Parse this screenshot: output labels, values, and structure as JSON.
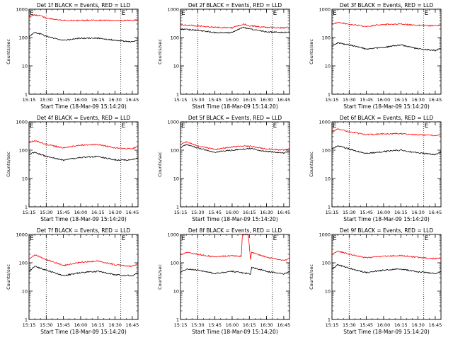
{
  "chart_data": [
    {
      "type": "line",
      "title": "Det 1f BLACK = Events, RED = LLD",
      "xlabel": "Start Time (18-Mar-09 15:14:20)",
      "ylabel": "Counts/sec",
      "xlim": [
        "15:15",
        "16:50"
      ],
      "ylim": [
        1,
        1000
      ],
      "yscale": "log",
      "xticks": [
        "15:15",
        "15:30",
        "15:45",
        "16:00",
        "16:15",
        "16:30",
        "16:45"
      ],
      "yticks": [
        "1",
        "10",
        "100",
        "1000"
      ],
      "annotations": [
        "E",
        "E"
      ],
      "dotted_lines_x": [
        "15:30",
        "16:35"
      ],
      "series": [
        {
          "color": "#ff0000",
          "x": [
            "15:15",
            "15:20",
            "15:25",
            "15:30",
            "15:45",
            "16:00",
            "16:15",
            "16:30",
            "16:45",
            "16:50"
          ],
          "y": [
            550,
            620,
            600,
            480,
            400,
            400,
            410,
            400,
            400,
            420
          ]
        },
        {
          "color": "#000000",
          "x": [
            "15:15",
            "15:20",
            "15:25",
            "15:30",
            "15:45",
            "16:00",
            "16:15",
            "16:30",
            "16:45",
            "16:50"
          ],
          "y": [
            110,
            150,
            135,
            110,
            80,
            95,
            95,
            80,
            70,
            85
          ]
        }
      ]
    },
    {
      "type": "line",
      "title": "Det 2f BLACK = Events, RED = LLD",
      "xlabel": "Start Time (18-Mar-09 15:14:20)",
      "ylabel": "Counts/sec",
      "xlim": [
        "15:15",
        "16:50"
      ],
      "ylim": [
        1,
        1000
      ],
      "yscale": "log",
      "xticks": [
        "15:15",
        "15:30",
        "15:45",
        "16:00",
        "16:15",
        "16:30",
        "16:45"
      ],
      "yticks": [
        "1",
        "10",
        "100",
        "1000"
      ],
      "annotations": [
        "E",
        "E"
      ],
      "dotted_lines_x": [
        "15:30",
        "16:35"
      ],
      "series": [
        {
          "color": "#ff0000",
          "x": [
            "15:15",
            "15:30",
            "15:45",
            "16:00",
            "16:10",
            "16:15",
            "16:30",
            "16:45",
            "16:50"
          ],
          "y": [
            280,
            260,
            230,
            220,
            300,
            260,
            230,
            220,
            230
          ]
        },
        {
          "color": "#000000",
          "x": [
            "15:15",
            "15:30",
            "15:45",
            "16:00",
            "16:10",
            "16:15",
            "16:30",
            "16:45",
            "16:50"
          ],
          "y": [
            200,
            180,
            150,
            150,
            230,
            200,
            160,
            150,
            155
          ]
        }
      ]
    },
    {
      "type": "line",
      "title": "Det 3f BLACK = Events, RED = LLD",
      "xlabel": "Start Time (18-Mar-09 15:14:20)",
      "ylabel": "Counts/sec",
      "xlim": [
        "15:15",
        "16:50"
      ],
      "ylim": [
        1,
        1000
      ],
      "yscale": "log",
      "xticks": [
        "15:15",
        "15:30",
        "15:45",
        "16:00",
        "16:15",
        "16:30",
        "16:45"
      ],
      "yticks": [
        "1",
        "10",
        "100",
        "1000"
      ],
      "annotations": [
        "E",
        "E"
      ],
      "dotted_lines_x": [
        "15:30",
        "16:35"
      ],
      "series": [
        {
          "color": "#ff0000",
          "x": [
            "15:15",
            "15:20",
            "15:30",
            "15:45",
            "16:00",
            "16:15",
            "16:30",
            "16:45",
            "16:50"
          ],
          "y": [
            300,
            340,
            290,
            250,
            290,
            300,
            270,
            260,
            270
          ]
        },
        {
          "color": "#000000",
          "x": [
            "15:15",
            "15:20",
            "15:30",
            "15:45",
            "16:00",
            "16:15",
            "16:30",
            "16:45",
            "16:50"
          ],
          "y": [
            50,
            65,
            55,
            40,
            45,
            55,
            40,
            35,
            42
          ]
        }
      ]
    },
    {
      "type": "line",
      "title": "Det 4f BLACK = Events, RED = LLD",
      "xlabel": "Start Time (18-Mar-09 15:14:20)",
      "ylabel": "Counts/sec",
      "xlim": [
        "15:15",
        "16:50"
      ],
      "ylim": [
        1,
        1000
      ],
      "yscale": "log",
      "xticks": [
        "15:15",
        "15:30",
        "15:45",
        "16:00",
        "16:15",
        "16:30",
        "16:45"
      ],
      "yticks": [
        "1",
        "10",
        "100",
        "1000"
      ],
      "annotations": [
        "E",
        "E"
      ],
      "dotted_lines_x": [
        "15:30",
        "16:35"
      ],
      "series": [
        {
          "color": "#ff0000",
          "x": [
            "15:15",
            "15:20",
            "15:30",
            "15:45",
            "16:00",
            "16:15",
            "16:30",
            "16:45",
            "16:50"
          ],
          "y": [
            180,
            220,
            160,
            120,
            150,
            160,
            120,
            110,
            140
          ]
        },
        {
          "color": "#000000",
          "x": [
            "15:15",
            "15:20",
            "15:30",
            "15:45",
            "16:00",
            "16:15",
            "16:30",
            "16:45",
            "16:50"
          ],
          "y": [
            70,
            85,
            60,
            45,
            55,
            60,
            45,
            45,
            55
          ]
        }
      ]
    },
    {
      "type": "line",
      "title": "Det 5f BLACK = Events, RED = LLD",
      "xlabel": "Start Time (18-Mar-09 15:14:20)",
      "ylabel": "Counts/sec",
      "xlim": [
        "15:15",
        "16:50"
      ],
      "ylim": [
        1,
        1000
      ],
      "yscale": "log",
      "xticks": [
        "15:15",
        "15:30",
        "15:45",
        "16:00",
        "16:15",
        "16:30",
        "16:45"
      ],
      "yticks": [
        "1",
        "10",
        "100",
        "1000"
      ],
      "annotations": [
        "E",
        "E"
      ],
      "dotted_lines_x": [
        "15:30",
        "16:35"
      ],
      "series": [
        {
          "color": "#ff0000",
          "x": [
            "15:15",
            "15:20",
            "15:30",
            "15:45",
            "16:00",
            "16:15",
            "16:30",
            "16:45",
            "16:50"
          ],
          "y": [
            150,
            200,
            140,
            105,
            130,
            140,
            110,
            100,
            110
          ]
        },
        {
          "color": "#000000",
          "x": [
            "15:15",
            "15:20",
            "15:30",
            "15:45",
            "16:00",
            "16:15",
            "16:30",
            "16:45",
            "16:50"
          ],
          "y": [
            120,
            160,
            120,
            85,
            100,
            115,
            90,
            80,
            95
          ]
        }
      ]
    },
    {
      "type": "line",
      "title": "Det 6f BLACK = Events, RED = LLD",
      "xlabel": "Start Time (18-Mar-09 15:14:20)",
      "ylabel": "Counts/sec",
      "xlim": [
        "15:15",
        "16:50"
      ],
      "ylim": [
        1,
        1000
      ],
      "yscale": "log",
      "xticks": [
        "15:15",
        "15:30",
        "15:45",
        "16:00",
        "16:15",
        "16:30",
        "16:45"
      ],
      "yticks": [
        "1",
        "10",
        "100",
        "1000"
      ],
      "annotations": [
        "E",
        "E"
      ],
      "dotted_lines_x": [
        "15:30",
        "16:35"
      ],
      "series": [
        {
          "color": "#ff0000",
          "x": [
            "15:15",
            "15:20",
            "15:30",
            "15:45",
            "16:00",
            "16:15",
            "16:30",
            "16:45",
            "16:50"
          ],
          "y": [
            450,
            550,
            450,
            350,
            380,
            380,
            350,
            330,
            350
          ]
        },
        {
          "color": "#000000",
          "x": [
            "15:15",
            "15:20",
            "15:30",
            "15:45",
            "16:00",
            "16:15",
            "16:30",
            "16:45",
            "16:50"
          ],
          "y": [
            110,
            145,
            110,
            75,
            90,
            100,
            80,
            70,
            85
          ]
        }
      ]
    },
    {
      "type": "line",
      "title": "Det 7f BLACK = Events, RED = LLD",
      "xlabel": "Start Time (18-Mar-09 15:14:20)",
      "ylabel": "Counts/sec",
      "xlim": [
        "15:15",
        "16:50"
      ],
      "ylim": [
        1,
        1000
      ],
      "yscale": "log",
      "xticks": [
        "15:15",
        "15:30",
        "15:45",
        "16:00",
        "16:15",
        "16:30",
        "16:45"
      ],
      "yticks": [
        "1",
        "10",
        "100",
        "1000"
      ],
      "annotations": [
        "E",
        "E"
      ],
      "dotted_lines_x": [
        "15:30",
        "16:35"
      ],
      "series": [
        {
          "color": "#ff0000",
          "x": [
            "15:15",
            "15:20",
            "15:30",
            "15:45",
            "16:00",
            "16:15",
            "16:30",
            "16:45",
            "16:50"
          ],
          "y": [
            130,
            190,
            130,
            80,
            105,
            115,
            85,
            75,
            95
          ]
        },
        {
          "color": "#000000",
          "x": [
            "15:15",
            "15:20",
            "15:30",
            "15:45",
            "16:00",
            "16:15",
            "16:30",
            "16:45",
            "16:50"
          ],
          "y": [
            50,
            75,
            55,
            35,
            45,
            50,
            38,
            35,
            45
          ]
        }
      ]
    },
    {
      "type": "line",
      "title": "Det 8f BLACK = Events, RED = LLD",
      "xlabel": "Start Time (18-Mar-09 15:14:20)",
      "ylabel": "Counts/sec",
      "xlim": [
        "15:15",
        "16:50"
      ],
      "ylim": [
        1,
        1000
      ],
      "yscale": "log",
      "xticks": [
        "15:15",
        "15:30",
        "15:45",
        "16:00",
        "16:15",
        "16:30",
        "16:45"
      ],
      "yticks": [
        "1",
        "10",
        "100",
        "1000"
      ],
      "annotations": [
        "E",
        "E"
      ],
      "dotted_lines_x": [
        "15:30",
        "16:35"
      ],
      "series": [
        {
          "color": "#ff0000",
          "x": [
            "15:15",
            "15:20",
            "15:30",
            "15:45",
            "16:00",
            "16:08",
            "16:09",
            "16:11",
            "16:13",
            "16:14",
            "16:16",
            "16:17",
            "16:30",
            "16:45",
            "16:50"
          ],
          "y": [
            190,
            230,
            200,
            160,
            180,
            170,
            1000,
            1000,
            1000,
            1000,
            130,
            230,
            160,
            120,
            140
          ]
        },
        {
          "color": "#000000",
          "x": [
            "15:15",
            "15:20",
            "15:30",
            "15:45",
            "16:00",
            "16:08",
            "16:16",
            "16:17",
            "16:30",
            "16:45",
            "16:50"
          ],
          "y": [
            45,
            60,
            55,
            42,
            50,
            45,
            40,
            70,
            50,
            40,
            48
          ]
        }
      ]
    },
    {
      "type": "line",
      "title": "Det 9f BLACK = Events, RED = LLD",
      "xlabel": "Start Time (18-Mar-09 15:14:20)",
      "ylabel": "Counts/sec",
      "xlim": [
        "15:15",
        "16:50"
      ],
      "ylim": [
        1,
        1000
      ],
      "yscale": "log",
      "xticks": [
        "15:15",
        "15:30",
        "15:45",
        "16:00",
        "16:15",
        "16:30",
        "16:45"
      ],
      "yticks": [
        "1",
        "10",
        "100",
        "1000"
      ],
      "annotations": [
        "E",
        "E"
      ],
      "dotted_lines_x": [
        "15:30",
        "16:35"
      ],
      "series": [
        {
          "color": "#ff0000",
          "x": [
            "15:15",
            "15:20",
            "15:30",
            "15:45",
            "16:00",
            "16:15",
            "16:30",
            "16:45",
            "16:50"
          ],
          "y": [
            200,
            260,
            200,
            150,
            170,
            180,
            155,
            140,
            150
          ]
        },
        {
          "color": "#000000",
          "x": [
            "15:15",
            "15:20",
            "15:30",
            "15:45",
            "16:00",
            "16:15",
            "16:30",
            "16:45",
            "16:50"
          ],
          "y": [
            60,
            85,
            65,
            45,
            55,
            60,
            48,
            42,
            50
          ]
        }
      ]
    }
  ]
}
